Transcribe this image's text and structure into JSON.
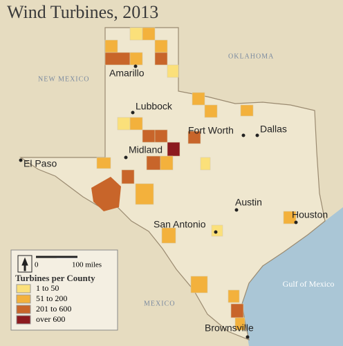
{
  "title": "Wind Turbines, 2013",
  "regions": [
    "NEW MEXICO",
    "OKLAHOMA",
    "MEXICO"
  ],
  "water": "Gulf of Mexico",
  "cities": [
    "Amarillo",
    "Lubbock",
    "Fort Worth",
    "Dallas",
    "Midland",
    "El Paso",
    "Austin",
    "San Antonio",
    "Houston",
    "Brownsville"
  ],
  "legend": {
    "scale": [
      "0",
      "100 miles"
    ],
    "title": "Turbines per County",
    "classes": [
      {
        "label": "1 to 50",
        "color": "#fbe07a"
      },
      {
        "label": "51 to 200",
        "color": "#f3b13c"
      },
      {
        "label": "201 to 600",
        "color": "#c8652a"
      },
      {
        "label": "over 600",
        "color": "#8c1a1f"
      }
    ]
  }
}
